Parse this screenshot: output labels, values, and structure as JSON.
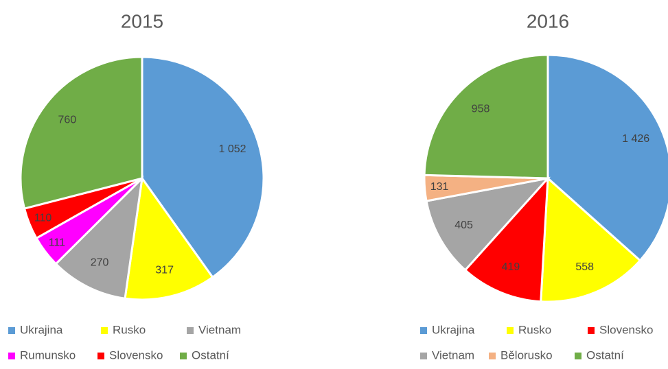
{
  "chart_data": [
    {
      "type": "pie",
      "title": "2015",
      "categories": [
        "Ukrajina",
        "Rusko",
        "Vietnam",
        "Rumunsko",
        "Slovensko",
        "Ostatní"
      ],
      "values": [
        1052,
        317,
        270,
        111,
        110,
        760
      ],
      "value_labels": [
        "1 052",
        "317",
        "270",
        "111",
        "110",
        "760"
      ],
      "colors": [
        "#5b9bd5",
        "#ffff00",
        "#a5a5a5",
        "#ff00ff",
        "#ff0000",
        "#70ad47"
      ]
    },
    {
      "type": "pie",
      "title": "2016",
      "categories": [
        "Ukrajina",
        "Rusko",
        "Slovensko",
        "Vietnam",
        "Bělorusko",
        "Ostatní"
      ],
      "values": [
        1426,
        558,
        419,
        405,
        131,
        958
      ],
      "value_labels": [
        "1 426",
        "558",
        "419",
        "405",
        "131",
        "958"
      ],
      "colors": [
        "#5b9bd5",
        "#ffff00",
        "#ff0000",
        "#a5a5a5",
        "#f4b183",
        "#70ad47"
      ]
    }
  ]
}
